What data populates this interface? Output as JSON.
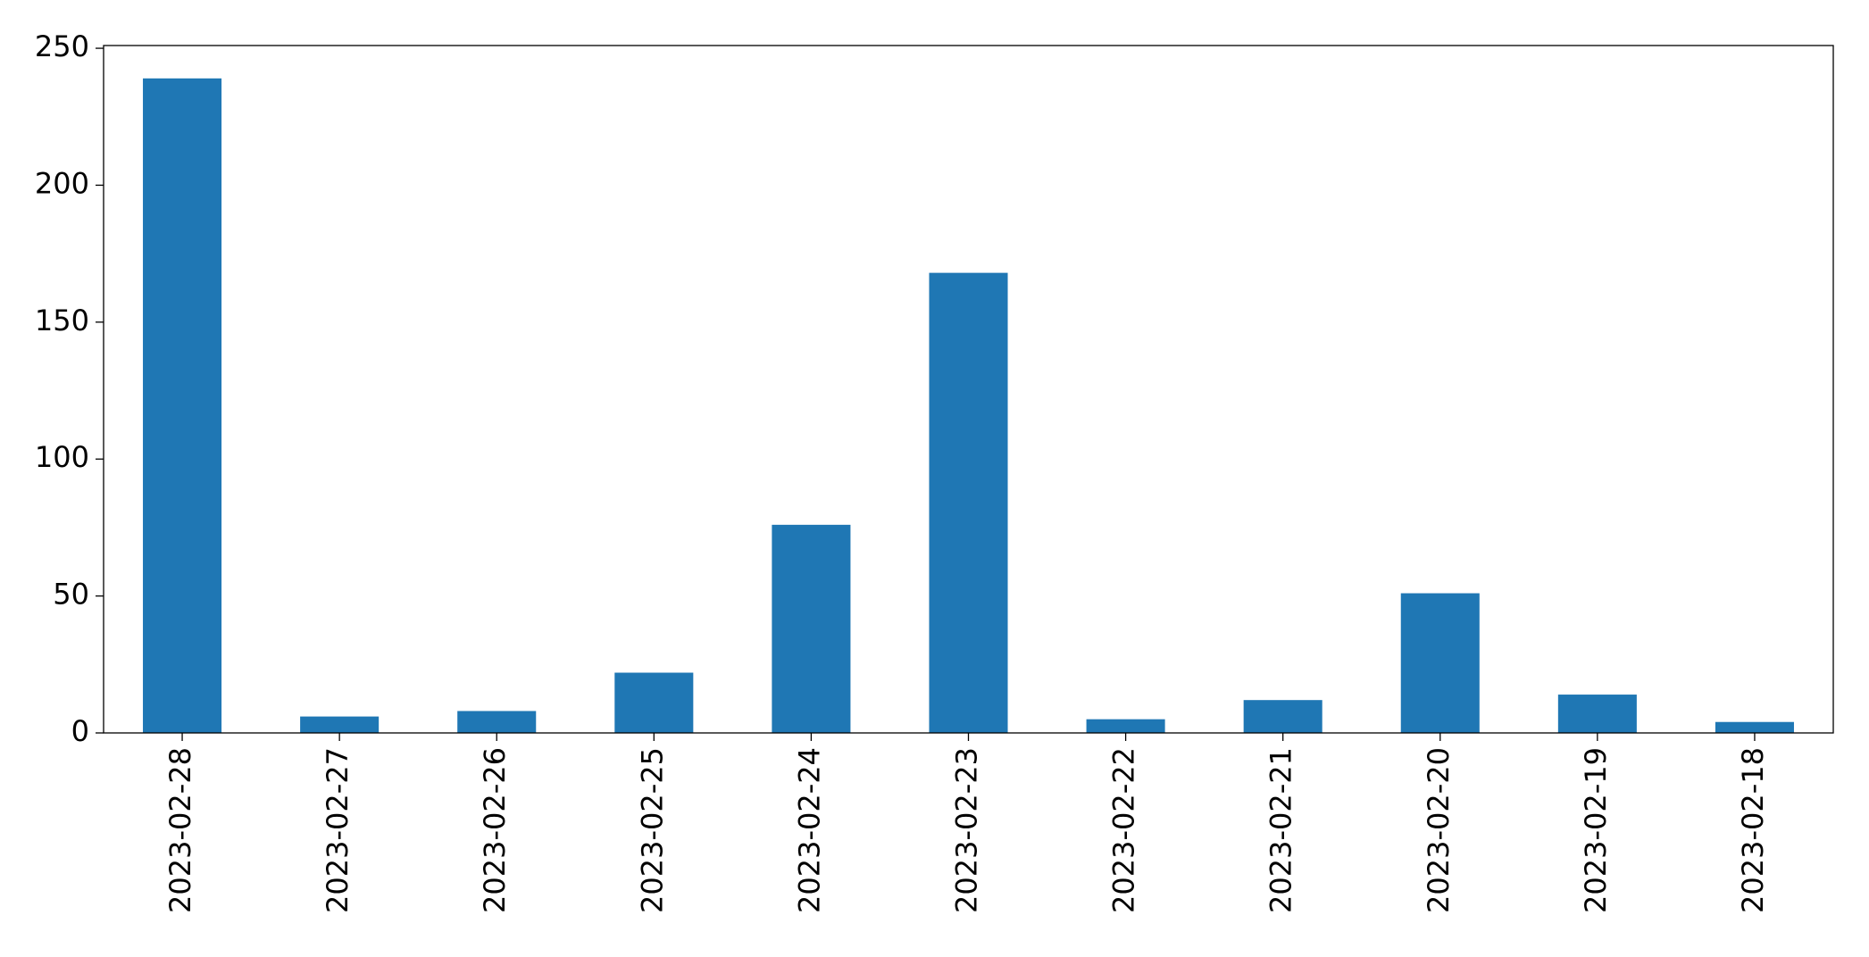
{
  "chart_data": {
    "type": "bar",
    "categories": [
      "2023-02-28",
      "2023-02-27",
      "2023-02-26",
      "2023-02-25",
      "2023-02-24",
      "2023-02-23",
      "2023-02-22",
      "2023-02-21",
      "2023-02-20",
      "2023-02-19",
      "2023-02-18"
    ],
    "values": [
      239,
      6,
      8,
      22,
      76,
      168,
      5,
      12,
      51,
      14,
      4
    ],
    "color": "#1f77b4",
    "ylim": [
      0,
      251
    ],
    "yticks": [
      0,
      50,
      100,
      150,
      200,
      250
    ],
    "grid": false
  }
}
